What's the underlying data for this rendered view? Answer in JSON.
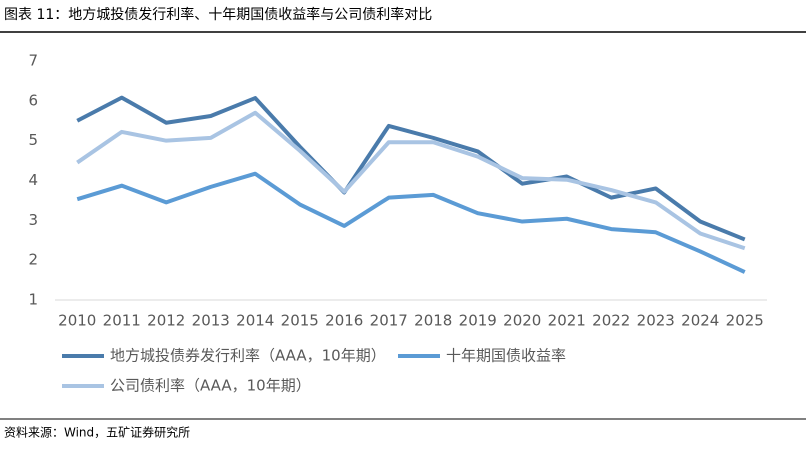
{
  "title": "图表 11：地方城投债发行利率、十年期国债收益率与公司债利率对比",
  "source": "资料来源：Wind，五矿证券研究所",
  "chart_data": {
    "type": "line",
    "categories": [
      "2010",
      "2011",
      "2012",
      "2013",
      "2014",
      "2015",
      "2016",
      "2017",
      "2018",
      "2019",
      "2020",
      "2021",
      "2022",
      "2023",
      "2024",
      "2025"
    ],
    "series": [
      {
        "name": "地方城投债券发行利率（AAA，10年期）",
        "color": "#4a7bab",
        "values": [
          5.5,
          6.08,
          5.45,
          5.62,
          6.07,
          4.85,
          3.7,
          5.37,
          5.07,
          4.73,
          3.92,
          4.1,
          3.57,
          3.8,
          2.97,
          2.52
        ]
      },
      {
        "name": "十年期国债收益率",
        "color": "#5b9bd5",
        "values": [
          3.53,
          3.87,
          3.45,
          3.84,
          4.17,
          3.4,
          2.86,
          3.57,
          3.64,
          3.18,
          2.97,
          3.04,
          2.78,
          2.7,
          2.22,
          1.7
        ]
      },
      {
        "name": "公司债利率（AAA，10年期）",
        "color": "#a9c4e3",
        "values": [
          4.45,
          5.22,
          5.0,
          5.07,
          5.7,
          4.75,
          3.72,
          4.96,
          4.96,
          4.6,
          4.06,
          4.02,
          3.76,
          3.45,
          2.67,
          2.3
        ]
      }
    ],
    "ylim": [
      1,
      7
    ],
    "yticks": [
      1,
      2,
      3,
      4,
      5,
      6,
      7
    ],
    "grid": false
  }
}
